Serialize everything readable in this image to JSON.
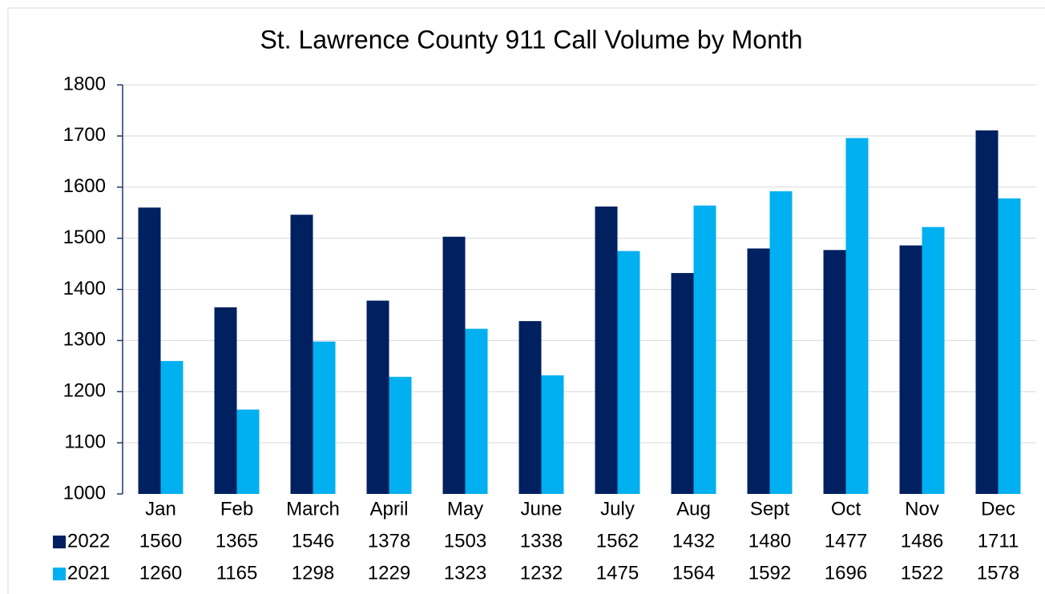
{
  "chart_data": {
    "type": "bar",
    "title": "St. Lawrence County 911 Call Volume by Month",
    "categories": [
      "Jan",
      "Feb",
      "March",
      "April",
      "May",
      "June",
      "July",
      "Aug",
      "Sept",
      "Oct",
      "Nov",
      "Dec"
    ],
    "series": [
      {
        "name": "2022",
        "color": "#002060",
        "values": [
          1560,
          1365,
          1546,
          1378,
          1503,
          1338,
          1562,
          1432,
          1480,
          1477,
          1486,
          1711
        ]
      },
      {
        "name": "2021",
        "color": "#00b0f0",
        "values": [
          1260,
          1165,
          1298,
          1229,
          1323,
          1232,
          1475,
          1564,
          1592,
          1696,
          1522,
          1578
        ]
      }
    ],
    "ylim": [
      1000,
      1800
    ],
    "yticks": [
      1000,
      1100,
      1200,
      1300,
      1400,
      1500,
      1600,
      1700,
      1800
    ],
    "grid": true
  }
}
